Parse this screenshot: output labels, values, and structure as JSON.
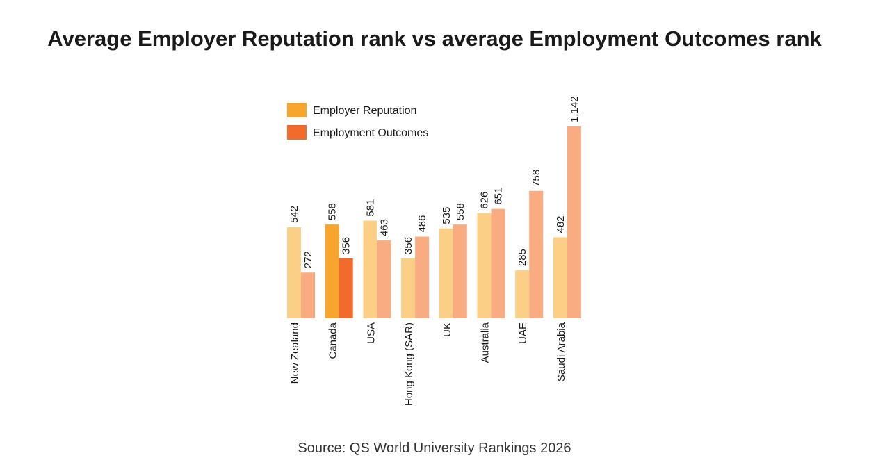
{
  "chart_data": {
    "type": "bar",
    "title": "Average Employer Reputation rank vs average Employment Outcomes rank",
    "xlabel": "",
    "ylabel": "",
    "ylim": [
      0,
      1142
    ],
    "categories": [
      "New Zealand",
      "Canada",
      "USA",
      "Hong Kong (SAR)",
      "UK",
      "Australia",
      "UAE",
      "Saudi Arabia"
    ],
    "highlight_category": "Canada",
    "series": [
      {
        "name": "Employer Reputation",
        "values": [
          542,
          558,
          581,
          356,
          535,
          626,
          285,
          482
        ],
        "labels": [
          "542",
          "558",
          "581",
          "356",
          "535",
          "626",
          "285",
          "482"
        ],
        "color": "#f7a52c",
        "muted_color": "#fbcf86"
      },
      {
        "name": "Employment Outcomes",
        "values": [
          272,
          356,
          463,
          486,
          558,
          651,
          758,
          1142
        ],
        "labels": [
          "272",
          "356",
          "463",
          "486",
          "558",
          "651",
          "758",
          "1,142"
        ],
        "color": "#f26b2c",
        "muted_color": "#f9ab82"
      }
    ],
    "legend": "top-left"
  },
  "footer": {
    "source": "Source: QS World University Rankings 2026"
  }
}
